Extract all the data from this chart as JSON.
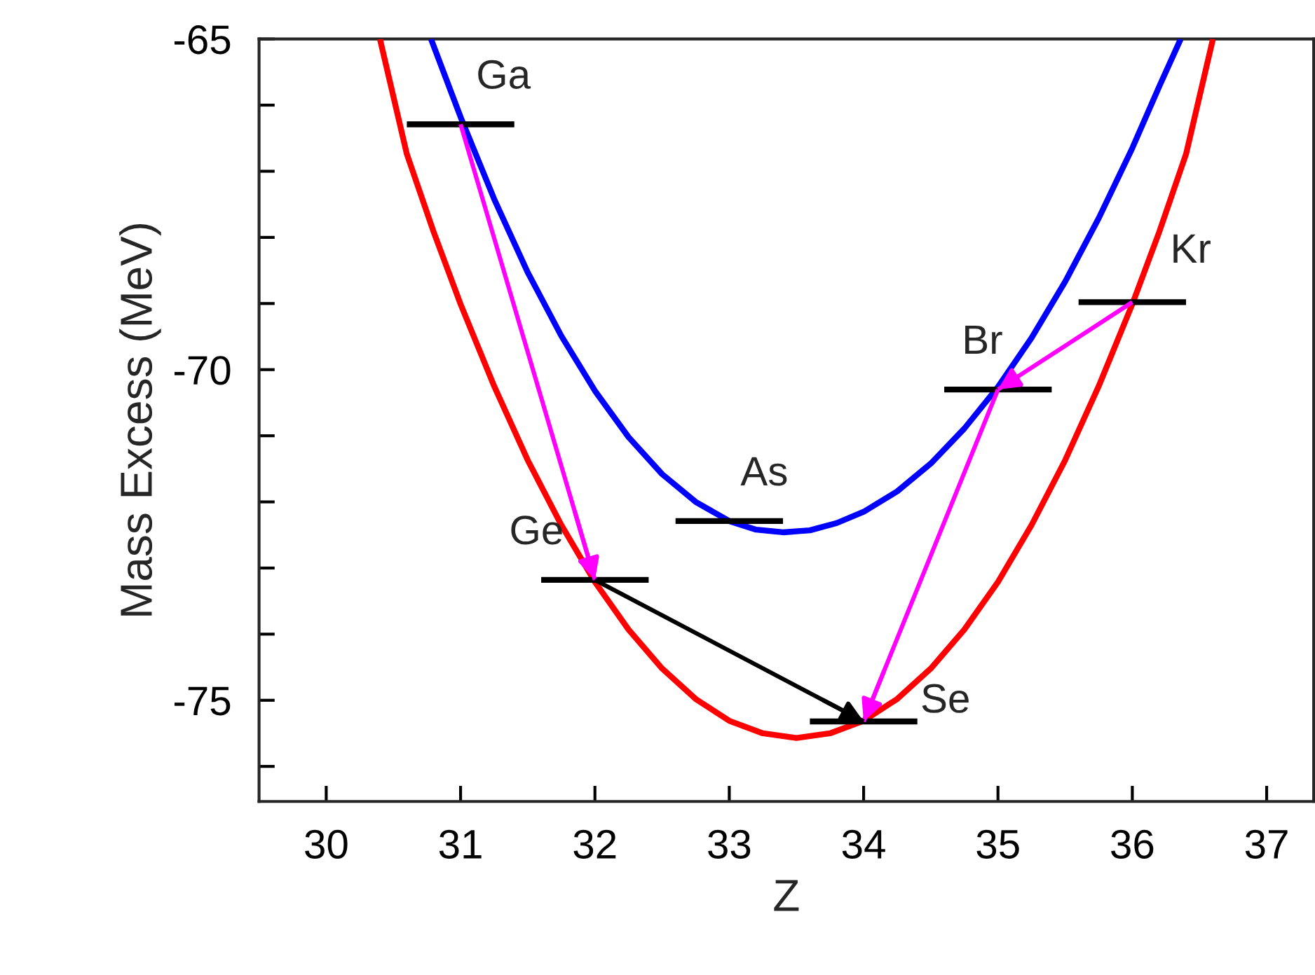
{
  "chart_data": {
    "type": "line",
    "xlabel": "Z",
    "ylabel": "Mass Excess (MeV)",
    "xlim": [
      29.5,
      37.35
    ],
    "ylim": [
      -76.53,
      -65
    ],
    "xticks": [
      30,
      31,
      32,
      33,
      34,
      35,
      36,
      37
    ],
    "yticks": [
      -65,
      {
        "value": -66,
        "label": null
      },
      {
        "value": -67,
        "label": null
      },
      {
        "value": -68,
        "label": null
      },
      {
        "value": -69,
        "label": null
      },
      -70,
      {
        "value": -71,
        "label": null
      },
      {
        "value": -72,
        "label": null
      },
      {
        "value": -73,
        "label": null
      },
      {
        "value": -74,
        "label": null
      },
      -75,
      {
        "value": -76,
        "label": null
      }
    ],
    "grid": false,
    "legend": false,
    "series": [
      {
        "color": "#ff0000",
        "x": [
          30.4,
          30.6,
          30.8,
          31.0,
          31.25,
          31.5,
          31.75,
          32.0,
          32.25,
          32.5,
          32.75,
          33.0,
          33.25,
          33.5,
          33.75,
          34.0,
          34.25,
          34.5,
          34.75,
          35.0,
          35.25,
          35.5,
          35.75,
          36.0,
          36.2,
          36.4,
          36.6
        ],
        "values": [
          -65.0,
          -66.74,
          -67.92,
          -69.01,
          -70.25,
          -71.37,
          -72.35,
          -73.21,
          -73.93,
          -74.52,
          -74.98,
          -75.31,
          -75.5,
          -75.57,
          -75.5,
          -75.31,
          -74.98,
          -74.52,
          -73.93,
          -73.21,
          -72.35,
          -71.37,
          -70.25,
          -69.01,
          -67.92,
          -66.74,
          -65.0
        ]
      },
      {
        "color": "#0000ff",
        "x": [
          30.78,
          31.0,
          31.25,
          31.5,
          31.75,
          32.0,
          32.25,
          32.5,
          32.75,
          33.0,
          33.2,
          33.4,
          33.6,
          33.8,
          34.0,
          34.25,
          34.5,
          34.75,
          35.0,
          35.25,
          35.5,
          35.75,
          36.0,
          36.2,
          36.36
        ],
        "values": [
          -65.0,
          -66.18,
          -67.42,
          -68.53,
          -69.49,
          -70.32,
          -71.02,
          -71.58,
          -72.0,
          -72.29,
          -72.42,
          -72.46,
          -72.43,
          -72.32,
          -72.15,
          -71.84,
          -71.42,
          -70.89,
          -70.26,
          -69.52,
          -68.67,
          -67.71,
          -66.65,
          -65.72,
          -65.0
        ]
      },
      {
        "color": "#000000",
        "x": [
          30.6,
          31.4
        ],
        "values": [
          -66.29,
          -66.29
        ]
      },
      {
        "color": "#000000",
        "x": [
          31.6,
          32.4
        ],
        "values": [
          -73.18,
          -73.18
        ]
      },
      {
        "color": "#000000",
        "x": [
          32.6,
          33.4
        ],
        "values": [
          -72.29,
          -72.29
        ]
      },
      {
        "color": "#000000",
        "x": [
          33.6,
          34.4
        ],
        "values": [
          -75.32,
          -75.32
        ]
      },
      {
        "color": "#000000",
        "x": [
          34.6,
          35.4
        ],
        "values": [
          -70.3,
          -70.3
        ]
      },
      {
        "color": "#000000",
        "x": [
          35.6,
          36.4
        ],
        "values": [
          -68.98,
          -68.98
        ]
      },
      {
        "color": "#ff00ff",
        "x": [
          31,
          32
        ],
        "values": [
          -66.29,
          -73.18
        ]
      },
      {
        "color": "#ff00ff",
        "x": [
          35,
          34
        ],
        "values": [
          -70.3,
          -75.32
        ]
      },
      {
        "color": "#ff00ff",
        "x": [
          36,
          35
        ],
        "values": [
          -68.98,
          -70.3
        ]
      },
      {
        "color": "#000000",
        "x": [
          32,
          34
        ],
        "values": [
          -73.18,
          -75.32
        ]
      }
    ],
    "annotations": [
      {
        "text": "Ga",
        "x": 31,
        "y": -66.29
      },
      {
        "text": "Ge",
        "x": 32,
        "y": -73.18
      },
      {
        "text": "As",
        "x": 33,
        "y": -72.29
      },
      {
        "text": "Se",
        "x": 34,
        "y": -75.32
      },
      {
        "text": "Br",
        "x": 35,
        "y": -70.3
      },
      {
        "text": "Kr",
        "x": 36,
        "y": -68.98
      }
    ]
  }
}
